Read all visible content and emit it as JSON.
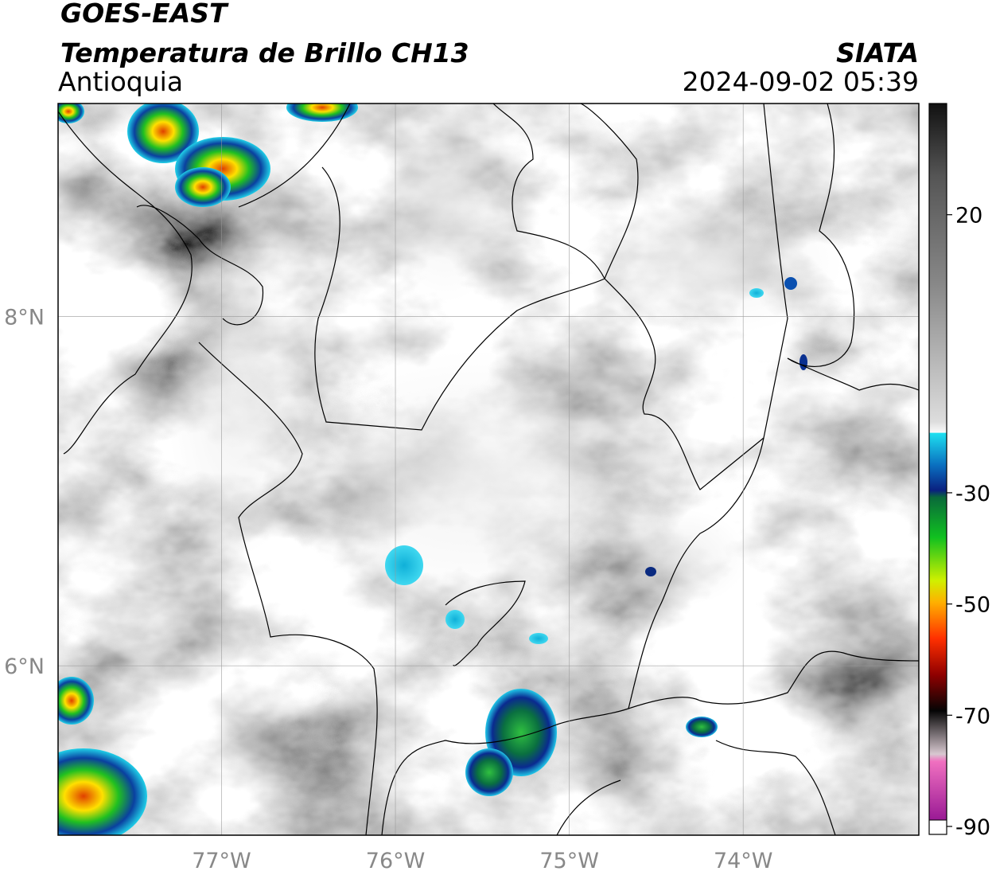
{
  "header": {
    "satellite": "GOES-EAST",
    "title": "Temperatura de Brillo CH13",
    "region": "Antioquia",
    "source": "SIATA",
    "datetime": "2024-09-02 05:39"
  },
  "map": {
    "xlim": [
      -77.94,
      -72.99
    ],
    "ylim": [
      5.03,
      9.22
    ],
    "xticks": [
      {
        "value": -77,
        "label": "77°W"
      },
      {
        "value": -76,
        "label": "76°W"
      },
      {
        "value": -75,
        "label": "75°W"
      },
      {
        "value": -74,
        "label": "74°W"
      }
    ],
    "yticks": [
      {
        "value": 6,
        "label": "6°N"
      },
      {
        "value": 8,
        "label": "8°N"
      }
    ],
    "grid": true
  },
  "colorbar": {
    "lim": [
      -90,
      40
    ],
    "ticks": [
      20,
      -30,
      -50,
      -70,
      -90
    ]
  }
}
